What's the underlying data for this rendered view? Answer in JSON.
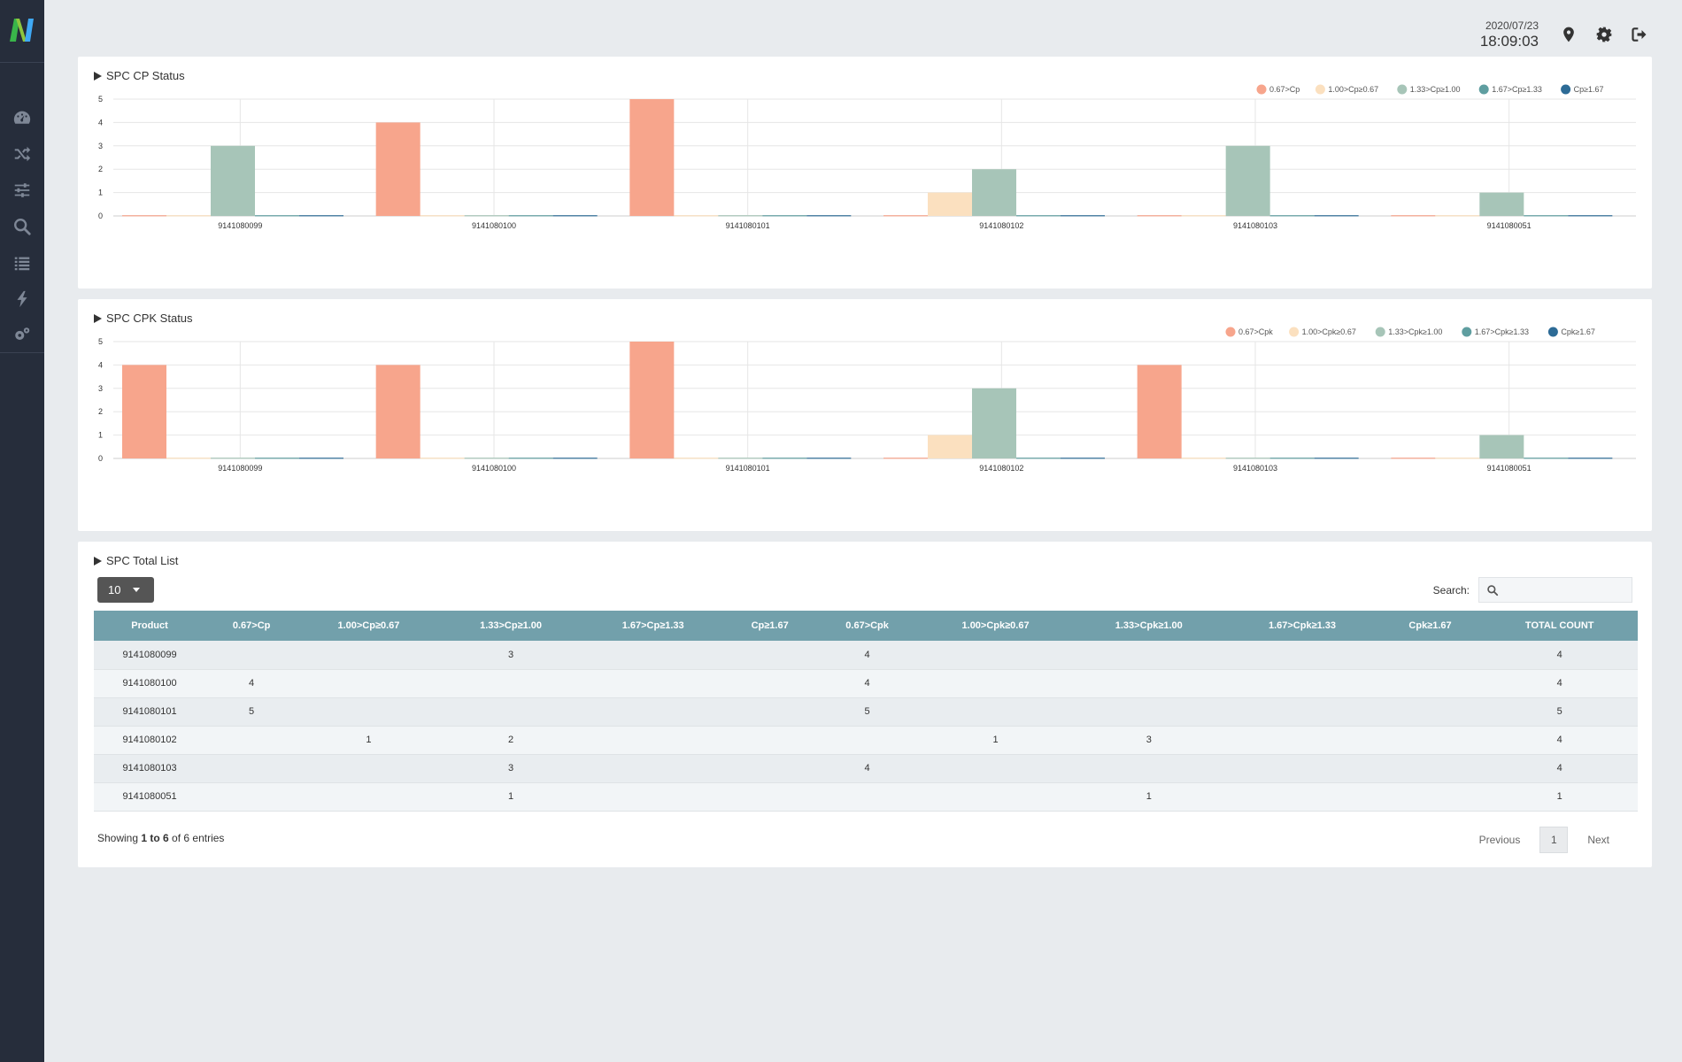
{
  "header": {
    "date": "2020/07/23",
    "time": "18:09:03"
  },
  "sidebar": {
    "items": [
      {
        "icon": "dashboard-icon"
      },
      {
        "icon": "shuffle-icon"
      },
      {
        "icon": "sliders-icon"
      },
      {
        "icon": "search-icon"
      },
      {
        "icon": "list-icon"
      },
      {
        "icon": "lightning-icon"
      },
      {
        "icon": "gears-icon"
      }
    ]
  },
  "panels": {
    "cp_title": "SPC CP Status",
    "cpk_title": "SPC CPK Status",
    "list_title": "SPC Total List"
  },
  "chart_data": [
    {
      "type": "bar",
      "title": "SPC CP Status",
      "categories": [
        "9141080099",
        "9141080100",
        "9141080101",
        "9141080102",
        "9141080103",
        "9141080051"
      ],
      "ylim": [
        0,
        5
      ],
      "yticks": [
        0,
        1,
        2,
        3,
        4,
        5
      ],
      "legend_position": "top-right",
      "grid": true,
      "series": [
        {
          "name": "0.67>Cp",
          "color": "#f7a58c",
          "values": [
            0,
            4,
            5,
            0,
            0,
            0
          ]
        },
        {
          "name": "1.00>Cp≥0.67",
          "color": "#fbe0bf",
          "values": [
            0,
            0,
            0,
            1,
            0,
            0
          ]
        },
        {
          "name": "1.33>Cp≥1.00",
          "color": "#a7c5b8",
          "values": [
            3,
            0,
            0,
            2,
            3,
            1
          ]
        },
        {
          "name": "1.67>Cp≥1.33",
          "color": "#5f9ea0",
          "values": [
            0,
            0,
            0,
            0,
            0,
            0
          ]
        },
        {
          "name": "Cp≥1.67",
          "color": "#2d6b96",
          "values": [
            0,
            0,
            0,
            0,
            0,
            0
          ]
        }
      ]
    },
    {
      "type": "bar",
      "title": "SPC CPK Status",
      "categories": [
        "9141080099",
        "9141080100",
        "9141080101",
        "9141080102",
        "9141080103",
        "9141080051"
      ],
      "ylim": [
        0,
        5
      ],
      "yticks": [
        0,
        1,
        2,
        3,
        4,
        5
      ],
      "legend_position": "top-right",
      "grid": true,
      "series": [
        {
          "name": "0.67>Cpk",
          "color": "#f7a58c",
          "values": [
            4,
            4,
            5,
            0,
            4,
            0
          ]
        },
        {
          "name": "1.00>Cpk≥0.67",
          "color": "#fbe0bf",
          "values": [
            0,
            0,
            0,
            1,
            0,
            0
          ]
        },
        {
          "name": "1.33>Cpk≥1.00",
          "color": "#a7c5b8",
          "values": [
            0,
            0,
            0,
            3,
            0,
            1
          ]
        },
        {
          "name": "1.67>Cpk≥1.33",
          "color": "#5f9ea0",
          "values": [
            0,
            0,
            0,
            0,
            0,
            0
          ]
        },
        {
          "name": "Cpk≥1.67",
          "color": "#2d6b96",
          "values": [
            0,
            0,
            0,
            0,
            0,
            0
          ]
        }
      ]
    }
  ],
  "table": {
    "length": "10",
    "search_label": "Search:",
    "search_value": "",
    "columns": [
      "Product",
      "0.67>Cp",
      "1.00>Cp≥0.67",
      "1.33>Cp≥1.00",
      "1.67>Cp≥1.33",
      "Cp≥1.67",
      "0.67>Cpk",
      "1.00>Cpk≥0.67",
      "1.33>Cpk≥1.00",
      "1.67>Cpk≥1.33",
      "Cpk≥1.67",
      "TOTAL COUNT"
    ],
    "rows": [
      [
        "9141080099",
        "",
        "",
        "3",
        "",
        "",
        "4",
        "",
        "",
        "",
        "",
        "4"
      ],
      [
        "9141080100",
        "4",
        "",
        "",
        "",
        "",
        "4",
        "",
        "",
        "",
        "",
        "4"
      ],
      [
        "9141080101",
        "5",
        "",
        "",
        "",
        "",
        "5",
        "",
        "",
        "",
        "",
        "5"
      ],
      [
        "9141080102",
        "",
        "1",
        "2",
        "",
        "",
        "",
        "1",
        "3",
        "",
        "",
        "4"
      ],
      [
        "9141080103",
        "",
        "",
        "3",
        "",
        "",
        "4",
        "",
        "",
        "",
        "",
        "4"
      ],
      [
        "9141080051",
        "",
        "",
        "1",
        "",
        "",
        "",
        "",
        "1",
        "",
        "",
        "1"
      ]
    ],
    "info_prefix": "Showing ",
    "info_range": "1 to 6",
    "info_suffix": " of 6 entries",
    "pagination": {
      "previous": "Previous",
      "current": "1",
      "next": "Next"
    }
  }
}
